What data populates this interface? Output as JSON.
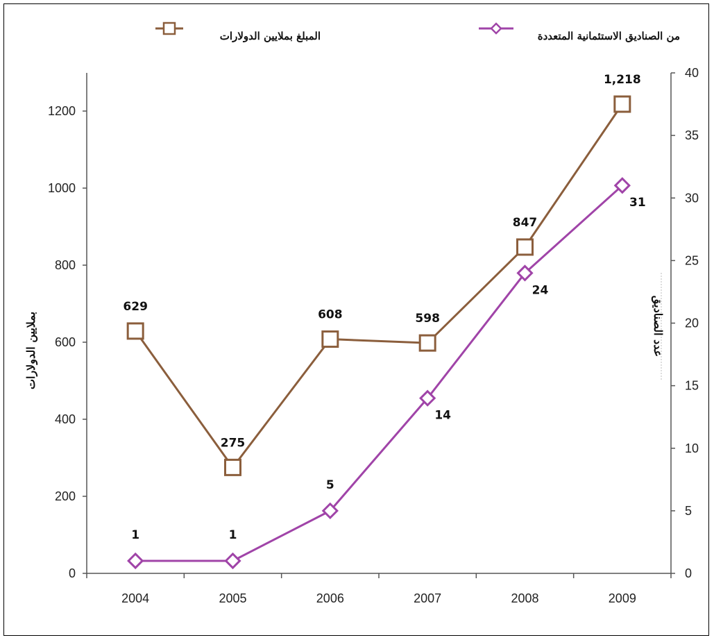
{
  "chart_data": {
    "type": "line",
    "title": "",
    "x": [
      "2004",
      "2005",
      "2006",
      "2007",
      "2008",
      "2009"
    ],
    "xlabel": "",
    "ylabel_left": "بملايين الدولارات",
    "ylabel_right": "عدد الصناديق",
    "ylim_left": [
      0,
      1200
    ],
    "yticks_left": [
      "0",
      "200",
      "400",
      "600",
      "800",
      "1000",
      "1200"
    ],
    "ylim_right": [
      0,
      40
    ],
    "yticks_right": [
      "0",
      "5",
      "10",
      "15",
      "20",
      "25",
      "30",
      "35",
      "40"
    ],
    "grid": false,
    "legend_position": "top",
    "series": [
      {
        "name": "المبلغ بملايين الدولارات",
        "axis": "left",
        "marker": "square",
        "color": "#8B5E3C",
        "values": [
          629,
          275,
          608,
          598,
          847,
          1218
        ],
        "labels": [
          "629",
          "275",
          "608",
          "598",
          "847",
          "1,218"
        ]
      },
      {
        "name": "من الصناديق الاستئمانية المتعددة",
        "axis": "right",
        "marker": "diamond",
        "color": "#A044A8",
        "values": [
          1,
          1,
          5,
          14,
          24,
          31
        ],
        "labels": [
          "1",
          "1",
          "5",
          "14",
          "24",
          "31"
        ]
      }
    ]
  }
}
